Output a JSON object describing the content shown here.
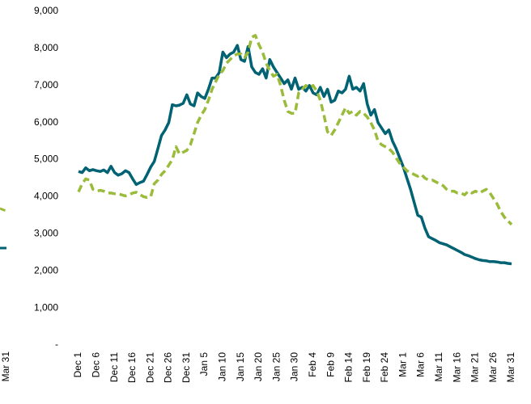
{
  "fragment_label": "Mar 31",
  "chart_data": {
    "type": "line",
    "categories": [
      "Dec 1",
      null,
      null,
      null,
      null,
      "Dec 6",
      null,
      null,
      null,
      null,
      "Dec 11",
      null,
      null,
      null,
      null,
      "Dec 16",
      null,
      null,
      null,
      null,
      "Dec 21",
      null,
      null,
      null,
      null,
      "Dec 26",
      null,
      null,
      null,
      null,
      "Dec 31",
      null,
      null,
      null,
      null,
      "Jan 5",
      null,
      null,
      null,
      null,
      "Jan 10",
      null,
      null,
      null,
      null,
      "Jan 15",
      null,
      null,
      null,
      null,
      "Jan 20",
      null,
      null,
      null,
      null,
      "Jan 25",
      null,
      null,
      null,
      null,
      "Jan 30",
      null,
      null,
      null,
      null,
      "Feb 4",
      null,
      null,
      null,
      null,
      "Feb 9",
      null,
      null,
      null,
      null,
      "Feb 14",
      null,
      null,
      null,
      null,
      "Feb 19",
      null,
      null,
      null,
      null,
      "Feb 24",
      null,
      null,
      null,
      null,
      "Mar 1",
      null,
      null,
      null,
      null,
      "Mar 6",
      null,
      null,
      null,
      null,
      "Mar 11",
      null,
      null,
      null,
      null,
      "Mar 16",
      null,
      null,
      null,
      null,
      "Mar 21",
      null,
      null,
      null,
      null,
      "Mar 26",
      null,
      null,
      null,
      null,
      "Mar 31"
    ],
    "series": [
      {
        "color": "#006272",
        "dash": false,
        "values": [
          4680,
          4650,
          4780,
          4700,
          4730,
          4700,
          4680,
          4720,
          4650,
          4820,
          4650,
          4580,
          4620,
          4700,
          4650,
          4480,
          4330,
          4380,
          4420,
          4600,
          4800,
          4950,
          5300,
          5650,
          5800,
          6000,
          6480,
          6450,
          6470,
          6520,
          6750,
          6500,
          6450,
          6800,
          6700,
          6650,
          6900,
          7200,
          7200,
          7350,
          7900,
          7750,
          7850,
          7900,
          8080,
          7700,
          7650,
          8050,
          7500,
          7350,
          7300,
          7450,
          7200,
          7700,
          7500,
          7350,
          7200,
          7050,
          7150,
          6900,
          7200,
          6900,
          6950,
          6850,
          7000,
          6800,
          6750,
          6950,
          6700,
          6900,
          6550,
          6600,
          6850,
          6800,
          6900,
          7250,
          6900,
          6950,
          6850,
          7050,
          6500,
          6200,
          6350,
          6000,
          5850,
          5700,
          5800,
          5500,
          5300,
          5050,
          4800,
          4500,
          4200,
          3850,
          3500,
          3450,
          3150,
          2920,
          2870,
          2820,
          2760,
          2730,
          2700,
          2650,
          2600,
          2550,
          2500,
          2440,
          2410,
          2370,
          2330,
          2300,
          2280,
          2270,
          2250,
          2250,
          2240,
          2220,
          2220,
          2200,
          2190
        ]
      },
      {
        "color": "#9bbb3b",
        "dash": true,
        "values": [
          4130,
          4350,
          4480,
          4450,
          4200,
          4150,
          4170,
          4150,
          4100,
          4100,
          4080,
          4080,
          4050,
          4020,
          4050,
          4100,
          4120,
          4060,
          4000,
          3980,
          4000,
          4350,
          4450,
          4600,
          4700,
          4850,
          5000,
          5350,
          5150,
          5200,
          5250,
          5400,
          5700,
          6000,
          6200,
          6350,
          6600,
          6900,
          7100,
          7300,
          7400,
          7600,
          7700,
          7800,
          7850,
          7850,
          7750,
          7900,
          8300,
          8350,
          8100,
          7900,
          7600,
          7400,
          7250,
          7300,
          7000,
          6600,
          6300,
          6250,
          6250,
          6800,
          6900,
          7000,
          6950,
          7000,
          6850,
          6600,
          6200,
          5750,
          5650,
          5800,
          6000,
          6200,
          6400,
          6250,
          6300,
          6200,
          6300,
          6250,
          6150,
          6000,
          5800,
          5500,
          5400,
          5350,
          5300,
          5200,
          5050,
          4900,
          4800,
          4700,
          4650,
          4600,
          4550,
          4600,
          4500,
          4450,
          4450,
          4400,
          4350,
          4300,
          4200,
          4150,
          4150,
          4100,
          4100,
          4050,
          4150,
          4100,
          4150,
          4100,
          4150,
          4200,
          4100,
          3950,
          3800,
          3600,
          3450,
          3350,
          3250
        ]
      }
    ],
    "ylim": [
      0,
      9000
    ],
    "yticks": [
      {
        "value": 0,
        "label": "-"
      },
      {
        "value": 1000,
        "label": "1,000"
      },
      {
        "value": 2000,
        "label": "2,000"
      },
      {
        "value": 3000,
        "label": "3,000"
      },
      {
        "value": 4000,
        "label": "4,000"
      },
      {
        "value": 5000,
        "label": "5,000"
      },
      {
        "value": 6000,
        "label": "6,000"
      },
      {
        "value": 7000,
        "label": "7,000"
      },
      {
        "value": 8000,
        "label": "8,000"
      },
      {
        "value": 9000,
        "label": "9,000"
      }
    ],
    "grid": false
  }
}
